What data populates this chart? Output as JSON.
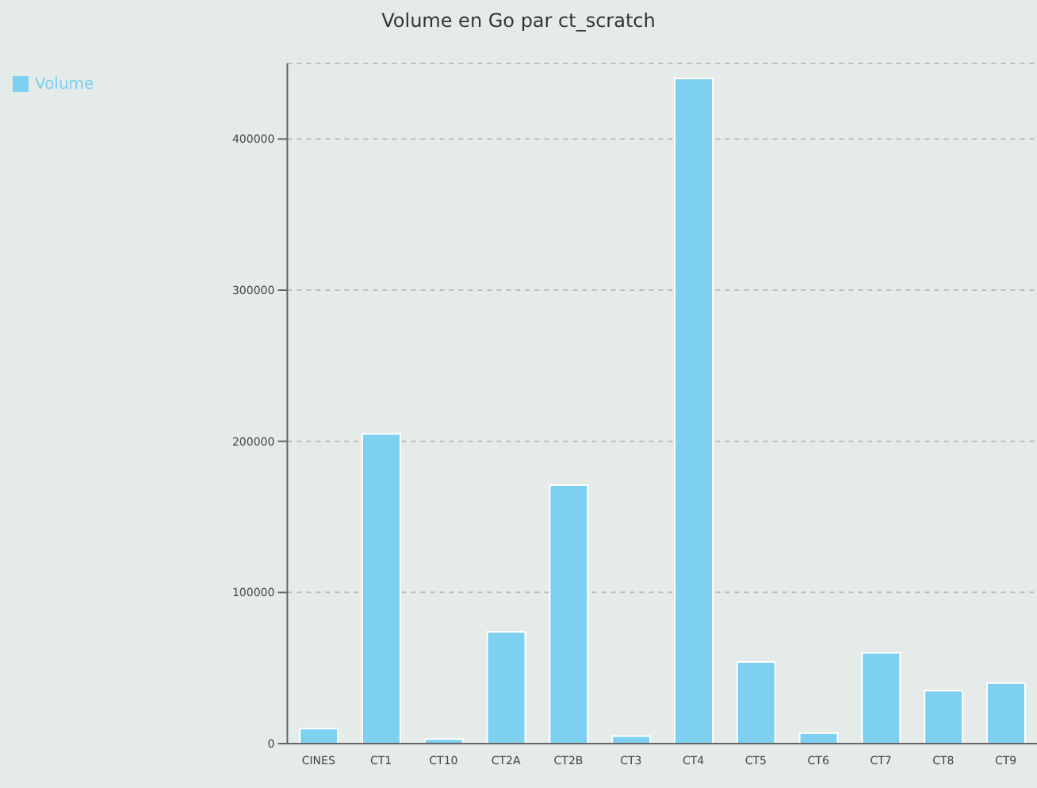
{
  "chart_data": {
    "type": "bar",
    "title": "Volume en Go par ct_scratch",
    "categories": [
      "CINES",
      "CT1",
      "CT10",
      "CT2A",
      "CT2B",
      "CT3",
      "CT4",
      "CT5",
      "CT6",
      "CT7",
      "CT8",
      "CT9"
    ],
    "series": [
      {
        "name": "Volume",
        "color": "#7dd0f0",
        "values": [
          10000,
          205000,
          3000,
          74000,
          171000,
          5000,
          440000,
          54000,
          7000,
          60000,
          35000,
          40000
        ]
      }
    ],
    "ylim": [
      0,
      450000
    ],
    "yticks": [
      0,
      100000,
      200000,
      300000,
      400000
    ],
    "grid": "y",
    "legend": "top left"
  }
}
